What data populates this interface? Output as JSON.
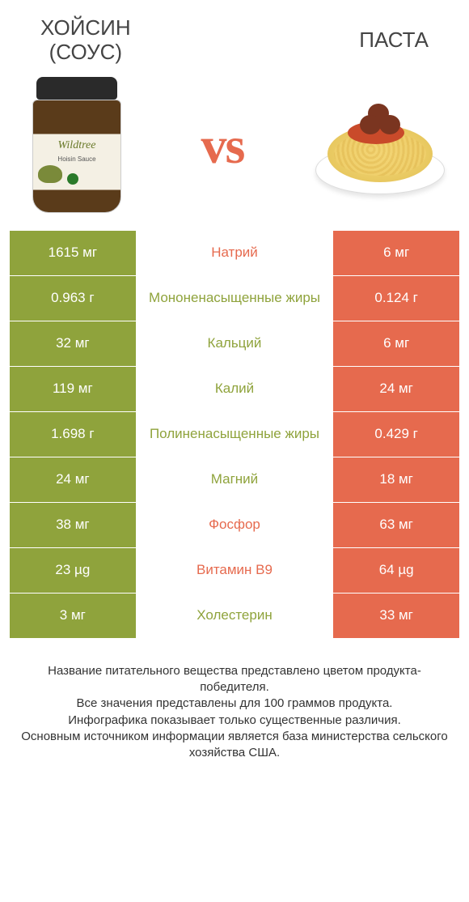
{
  "colors": {
    "left_bg": "#8fa33c",
    "right_bg": "#e66a4e",
    "mid_text_left": "#8fa33c",
    "mid_text_right": "#e66a4e",
    "white": "#ffffff"
  },
  "header": {
    "left_title_line1": "Хойсин",
    "left_title_line2": "(соус)",
    "right_title": "Паста",
    "vs": "vs",
    "jar_label": "Wildtree",
    "jar_sub": "Hoisin Sauce"
  },
  "rows": [
    {
      "left": "1615 мг",
      "mid": "Натрий",
      "right": "6 мг",
      "winner": "left"
    },
    {
      "left": "0.963 г",
      "mid": "Мононенасыщенные жиры",
      "right": "0.124 г",
      "winner": "left"
    },
    {
      "left": "32 мг",
      "mid": "Кальций",
      "right": "6 мг",
      "winner": "left"
    },
    {
      "left": "119 мг",
      "mid": "Калий",
      "right": "24 мг",
      "winner": "left"
    },
    {
      "left": "1.698 г",
      "mid": "Полиненасыщенные жиры",
      "right": "0.429 г",
      "winner": "left"
    },
    {
      "left": "24 мг",
      "mid": "Магний",
      "right": "18 мг",
      "winner": "left"
    },
    {
      "left": "38 мг",
      "mid": "Фосфор",
      "right": "63 мг",
      "winner": "right"
    },
    {
      "left": "23 µg",
      "mid": "Витамин B9",
      "right": "64 µg",
      "winner": "right"
    },
    {
      "left": "3 мг",
      "mid": "Холестерин",
      "right": "33 мг",
      "winner": "right"
    }
  ],
  "footer": {
    "line1": "Название питательного вещества представлено цветом продукта-победителя.",
    "line2": "Все значения представлены для 100 граммов продукта.",
    "line3": "Инфографика показывает только существенные различия.",
    "line4": "Основным источником информации является база министерства сельского хозяйства США."
  }
}
